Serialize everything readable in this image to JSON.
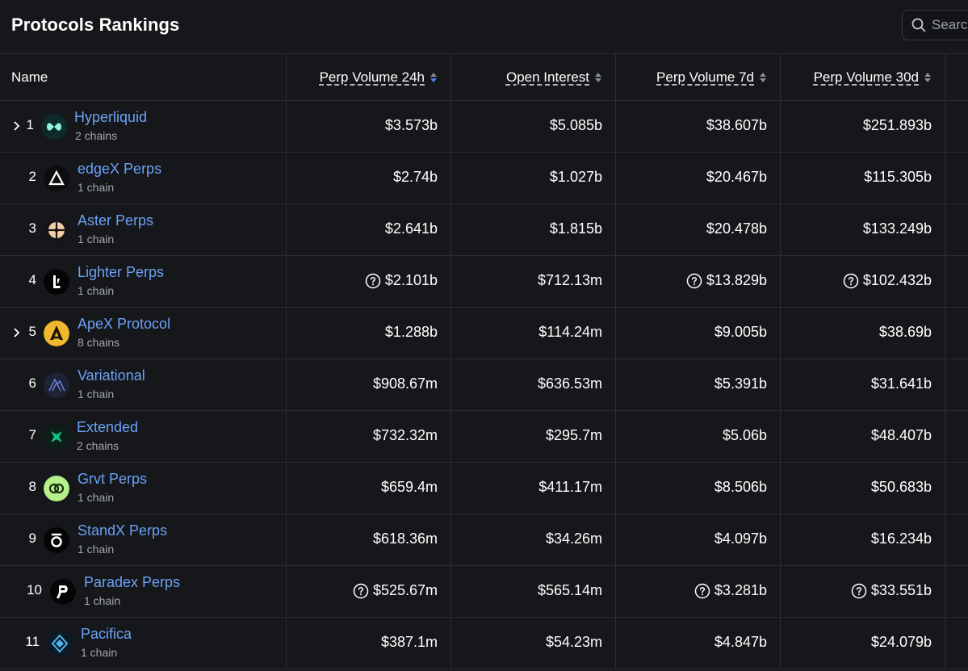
{
  "page": {
    "title": "Protocols Rankings"
  },
  "search": {
    "placeholder": "Search"
  },
  "table": {
    "headers": {
      "name": "Name",
      "perp_volume_24h": "Perp Volume 24h",
      "open_interest": "Open Interest",
      "perp_volume_7d": "Perp Volume 7d",
      "perp_volume_30d": "Perp Volume 30d"
    },
    "rows": [
      {
        "rank": "1",
        "name": "Hyperliquid",
        "chains": "2 chains",
        "v24h": "$3.573b",
        "oi": "$5.085b",
        "v7d": "$38.607b",
        "v30d": "$251.893b"
      },
      {
        "rank": "2",
        "name": "edgeX Perps",
        "chains": "1 chain",
        "v24h": "$2.74b",
        "oi": "$1.027b",
        "v7d": "$20.467b",
        "v30d": "$115.305b"
      },
      {
        "rank": "3",
        "name": "Aster Perps",
        "chains": "1 chain",
        "v24h": "$2.641b",
        "oi": "$1.815b",
        "v7d": "$20.478b",
        "v30d": "$133.249b"
      },
      {
        "rank": "4",
        "name": "Lighter Perps",
        "chains": "1 chain",
        "v24h": "$2.101b",
        "oi": "$712.13m",
        "v7d": "$13.829b",
        "v30d": "$102.432b"
      },
      {
        "rank": "5",
        "name": "ApeX Protocol",
        "chains": "8 chains",
        "v24h": "$1.288b",
        "oi": "$114.24m",
        "v7d": "$9.005b",
        "v30d": "$38.69b"
      },
      {
        "rank": "6",
        "name": "Variational",
        "chains": "1 chain",
        "v24h": "$908.67m",
        "oi": "$636.53m",
        "v7d": "$5.391b",
        "v30d": "$31.641b"
      },
      {
        "rank": "7",
        "name": "Extended",
        "chains": "2 chains",
        "v24h": "$732.32m",
        "oi": "$295.7m",
        "v7d": "$5.06b",
        "v30d": "$48.407b"
      },
      {
        "rank": "8",
        "name": "Grvt Perps",
        "chains": "1 chain",
        "v24h": "$659.4m",
        "oi": "$411.17m",
        "v7d": "$8.506b",
        "v30d": "$50.683b"
      },
      {
        "rank": "9",
        "name": "StandX Perps",
        "chains": "1 chain",
        "v24h": "$618.36m",
        "oi": "$34.26m",
        "v7d": "$4.097b",
        "v30d": "$16.234b"
      },
      {
        "rank": "10",
        "name": "Paradex Perps",
        "chains": "1 chain",
        "v24h": "$525.67m",
        "oi": "$565.14m",
        "v7d": "$3.281b",
        "v30d": "$33.551b"
      },
      {
        "rank": "11",
        "name": "Pacifica",
        "chains": "1 chain",
        "v24h": "$387.1m",
        "oi": "$54.23m",
        "v7d": "$4.847b",
        "v30d": "$24.079b"
      }
    ]
  }
}
